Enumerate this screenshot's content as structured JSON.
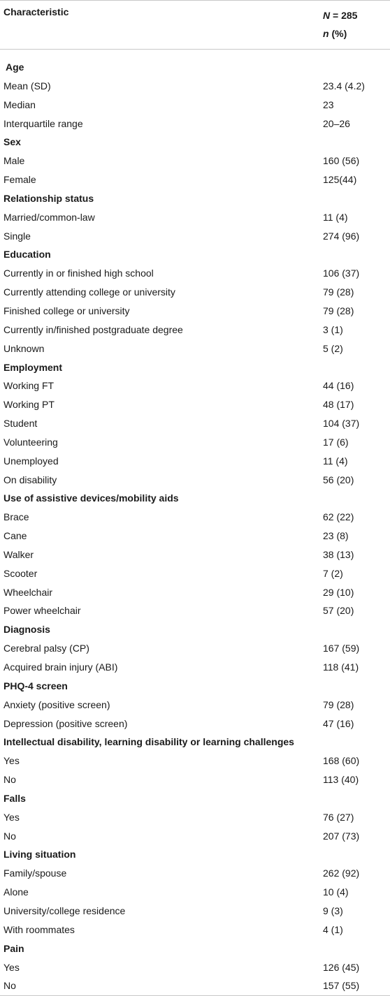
{
  "header": {
    "col1": "Characteristic",
    "n_italic": "N",
    "n_rest": " = 285",
    "n2_italic": "n",
    "n2_rest": " (%)"
  },
  "rows": [
    {
      "type": "section",
      "label": "Age",
      "value": ""
    },
    {
      "type": "data",
      "label": "Mean (SD)",
      "value": "23.4 (4.2)"
    },
    {
      "type": "data",
      "label": "Median",
      "value": "23"
    },
    {
      "type": "data",
      "label": "Interquartile range",
      "value": "20–26"
    },
    {
      "type": "section",
      "label": "Sex",
      "value": ""
    },
    {
      "type": "data",
      "label": "Male",
      "value": "160 (56)"
    },
    {
      "type": "data",
      "label": "Female",
      "value": "125(44)"
    },
    {
      "type": "section",
      "label": "Relationship status",
      "value": ""
    },
    {
      "type": "data",
      "label": "Married/common-law",
      "value": "11 (4)"
    },
    {
      "type": "data",
      "label": "Single",
      "value": "274 (96)"
    },
    {
      "type": "section",
      "label": "Education",
      "value": ""
    },
    {
      "type": "data",
      "label": "Currently in or finished high school",
      "value": "106 (37)"
    },
    {
      "type": "data",
      "label": "Currently attending college or university",
      "value": "79 (28)"
    },
    {
      "type": "data",
      "label": "Finished college or university",
      "value": "79 (28)"
    },
    {
      "type": "data",
      "label": "Currently in/finished postgraduate degree",
      "value": "3 (1)"
    },
    {
      "type": "data",
      "label": "Unknown",
      "value": "5 (2)"
    },
    {
      "type": "section",
      "label": "Employment",
      "value": ""
    },
    {
      "type": "data",
      "label": "Working FT",
      "value": "44 (16)"
    },
    {
      "type": "data",
      "label": "Working PT",
      "value": "48 (17)"
    },
    {
      "type": "data",
      "label": "Student",
      "value": "104 (37)"
    },
    {
      "type": "data",
      "label": "Volunteering",
      "value": "17 (6)"
    },
    {
      "type": "data",
      "label": "Unemployed",
      "value": "11 (4)"
    },
    {
      "type": "data",
      "label": "On disability",
      "value": "56 (20)"
    },
    {
      "type": "section",
      "label": "Use of assistive devices/mobility aids",
      "value": ""
    },
    {
      "type": "data",
      "label": "Brace",
      "value": "62 (22)"
    },
    {
      "type": "data",
      "label": "Cane",
      "value": "23 (8)"
    },
    {
      "type": "data",
      "label": "Walker",
      "value": "38 (13)"
    },
    {
      "type": "data",
      "label": "Scooter",
      "value": "7 (2)"
    },
    {
      "type": "data",
      "label": "Wheelchair",
      "value": "29 (10)"
    },
    {
      "type": "data",
      "label": "Power wheelchair",
      "value": "57 (20)"
    },
    {
      "type": "section",
      "label": "Diagnosis",
      "value": ""
    },
    {
      "type": "data",
      "label": "Cerebral palsy (CP)",
      "value": "167 (59)"
    },
    {
      "type": "data",
      "label": "Acquired brain injury (ABI)",
      "value": "118 (41)"
    },
    {
      "type": "section",
      "label": "PHQ-4 screen",
      "value": ""
    },
    {
      "type": "data",
      "label": "Anxiety (positive screen)",
      "value": "79 (28)"
    },
    {
      "type": "data",
      "label": "Depression (positive screen)",
      "value": "47 (16)"
    },
    {
      "type": "section",
      "label": "Intellectual disability, learning disability or learning challenges",
      "value": ""
    },
    {
      "type": "data",
      "label": "Yes",
      "value": "168 (60)"
    },
    {
      "type": "data",
      "label": "No",
      "value": "113 (40)"
    },
    {
      "type": "section",
      "label": "Falls",
      "value": ""
    },
    {
      "type": "data",
      "label": "Yes",
      "value": "76 (27)"
    },
    {
      "type": "data",
      "label": "No",
      "value": "207 (73)"
    },
    {
      "type": "section",
      "label": "Living situation",
      "value": ""
    },
    {
      "type": "data",
      "label": "Family/spouse",
      "value": "262 (92)"
    },
    {
      "type": "data",
      "label": "Alone",
      "value": "10 (4)"
    },
    {
      "type": "data",
      "label": "University/college residence",
      "value": "9 (3)"
    },
    {
      "type": "data",
      "label": "With roommates",
      "value": "4 (1)"
    },
    {
      "type": "section",
      "label": "Pain",
      "value": ""
    },
    {
      "type": "data",
      "label": "Yes",
      "value": "126 (45)"
    },
    {
      "type": "data",
      "label": "No",
      "value": "157 (55)"
    }
  ]
}
